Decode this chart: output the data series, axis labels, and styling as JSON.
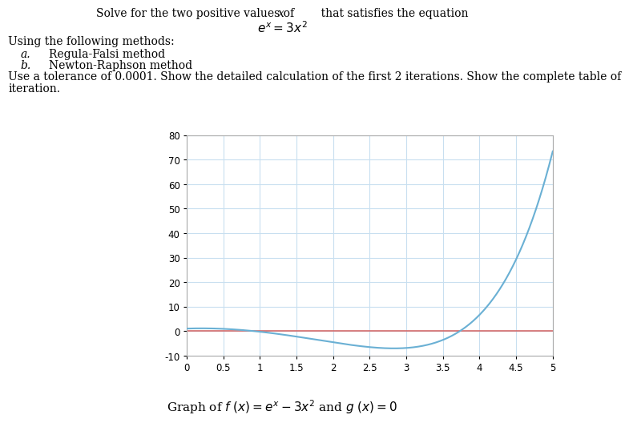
{
  "xlim": [
    0,
    5
  ],
  "ylim": [
    -10,
    80
  ],
  "xticks": [
    0,
    0.5,
    1,
    1.5,
    2,
    2.5,
    3,
    3.5,
    4,
    4.5,
    5
  ],
  "yticks": [
    -10,
    0,
    10,
    20,
    30,
    40,
    50,
    60,
    70,
    80
  ],
  "curve_color": "#6ab0d4",
  "hline_color": "#d46a6a",
  "background_color": "#ffffff",
  "grid_color": "#c8dff0",
  "text_color": "#000000",
  "spine_color": "#aaaaaa",
  "curve_linewidth": 1.5,
  "hline_linewidth": 1.2,
  "tick_labelsize": 8.5,
  "title1": "Solve for the two positive values of ",
  "title1_italic": "x",
  "title1_end": " that satisfies the equation",
  "intro": "Using the following methods:",
  "item_a": "a.  Regula-Falsi method",
  "item_b": "b.  Newton-Raphson method",
  "body": "Use a tolerance of 0.0001. Show the detailed calculation of the first 2 iterations. Show the complete table of",
  "body2": "iteration.",
  "caption": "Graph of $f$ $(x) = e^x - 3x^2$ and $g$ $(x) = 0$"
}
